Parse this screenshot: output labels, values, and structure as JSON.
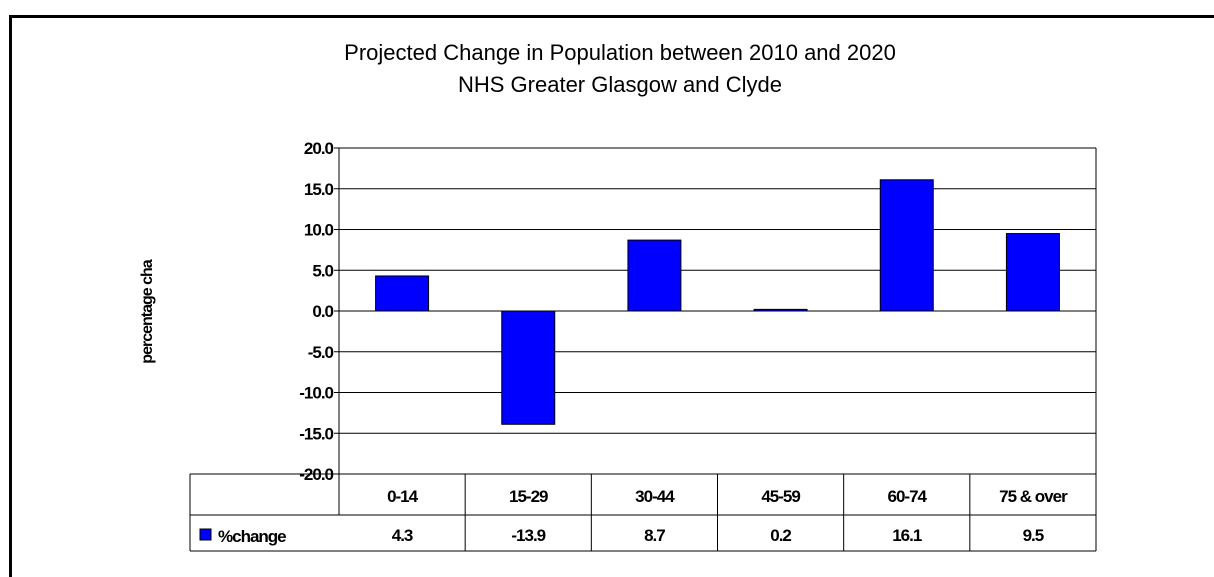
{
  "chart_data": {
    "type": "bar",
    "title": "Projected Change in Population between 2010 and 2020",
    "subtitle": "NHS Greater Glasgow and Clyde",
    "ylabel": "percentage cha",
    "xlabel": "",
    "categories": [
      "0-14",
      "15-29",
      "30-44",
      "45-59",
      "60-74",
      "75 & over"
    ],
    "series": [
      {
        "name": "%change",
        "values": [
          4.3,
          -13.9,
          8.7,
          0.2,
          16.1,
          9.5
        ]
      }
    ],
    "data_table_values": [
      "4.3",
      "-13.9",
      "8.7",
      "0.2",
      "16.1",
      "9.5"
    ],
    "ylim": [
      -20,
      20
    ],
    "y_ticks": [
      20,
      15,
      10,
      5,
      0,
      -5,
      -10,
      -15,
      -20
    ],
    "y_tick_labels": [
      "20.0",
      "15.0",
      "10.0",
      "5.0",
      "0.0",
      "-5.0",
      "-10.0",
      "-15.0",
      "-20.0"
    ],
    "grid": true,
    "legend": "data table",
    "bar_color": "#0000ff",
    "bar_stroke": "#000000"
  }
}
